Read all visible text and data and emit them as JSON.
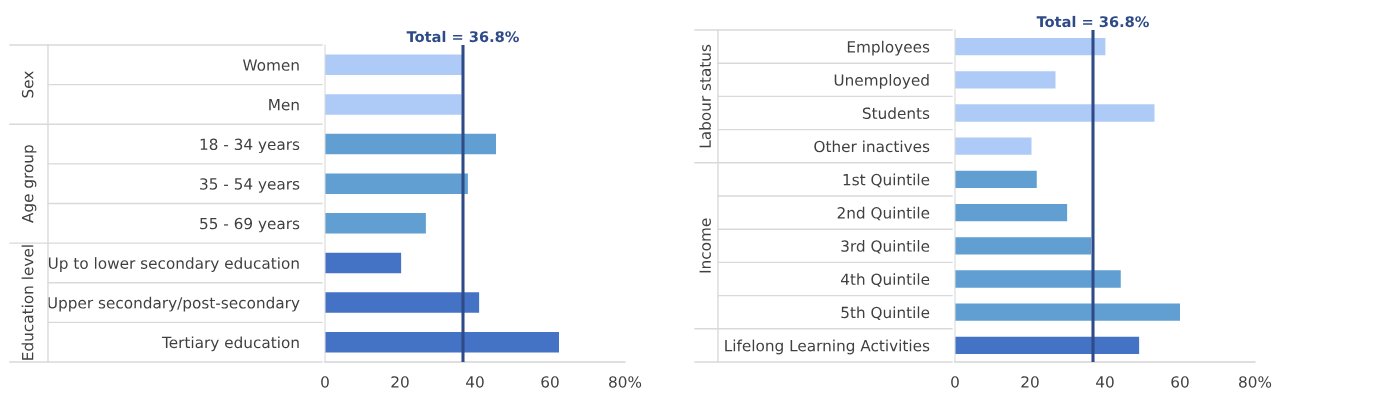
{
  "chart_data": [
    {
      "type": "bar",
      "orientation": "horizontal",
      "categories": [
        "Women",
        "Men",
        "18 - 34 years",
        "35 - 54 years",
        "55 - 69 years",
        "Up to lower secondary education",
        "Upper secondary/post-secondary",
        "Tertiary education"
      ],
      "values": [
        36.6,
        36.4,
        45.6,
        38.1,
        26.9,
        20.3,
        41.1,
        62.4
      ],
      "colors": [
        "#adcbf6",
        "#adcbf6",
        "#619fd2",
        "#619fd2",
        "#619fd2",
        "#4472c4",
        "#4472c4",
        "#4472c4"
      ],
      "annotations": [
        "Sex",
        "Age group",
        "Education level"
      ],
      "xlim": [
        0,
        80
      ],
      "xticks": [
        0,
        20,
        40,
        60,
        {
          "value": 80,
          "label": "80%"
        }
      ],
      "ref_lines": [
        {
          "axis": "x",
          "value": 36.8,
          "label": "Total = 36.8%",
          "color": "#2e4a87"
        }
      ],
      "grid": false,
      "legend": false
    },
    {
      "type": "bar",
      "orientation": "horizontal",
      "categories": [
        "Employees",
        "Unemployed",
        "Students",
        "Other inactives",
        "1st Quintile",
        "2nd Quintile",
        "3rd Quintile",
        "4th Quintile",
        "5th Quintile",
        "Lifelong Learning Activities"
      ],
      "values": [
        40.1,
        26.8,
        53.2,
        20.4,
        21.8,
        29.9,
        36.3,
        44.2,
        60.0,
        49.1
      ],
      "colors": [
        "#adcbf6",
        "#adcbf6",
        "#adcbf6",
        "#adcbf6",
        "#619fd2",
        "#619fd2",
        "#619fd2",
        "#619fd2",
        "#619fd2",
        "#4472c4"
      ],
      "annotations": [
        "Labour status",
        "Income"
      ],
      "xlim": [
        0,
        80
      ],
      "xticks": [
        0,
        20,
        40,
        60,
        {
          "value": 80,
          "label": "80%"
        }
      ],
      "ref_lines": [
        {
          "axis": "x",
          "value": 36.8,
          "label": "Total = 36.8%",
          "color": "#2e4a87"
        }
      ],
      "grid": false,
      "legend": false
    }
  ]
}
